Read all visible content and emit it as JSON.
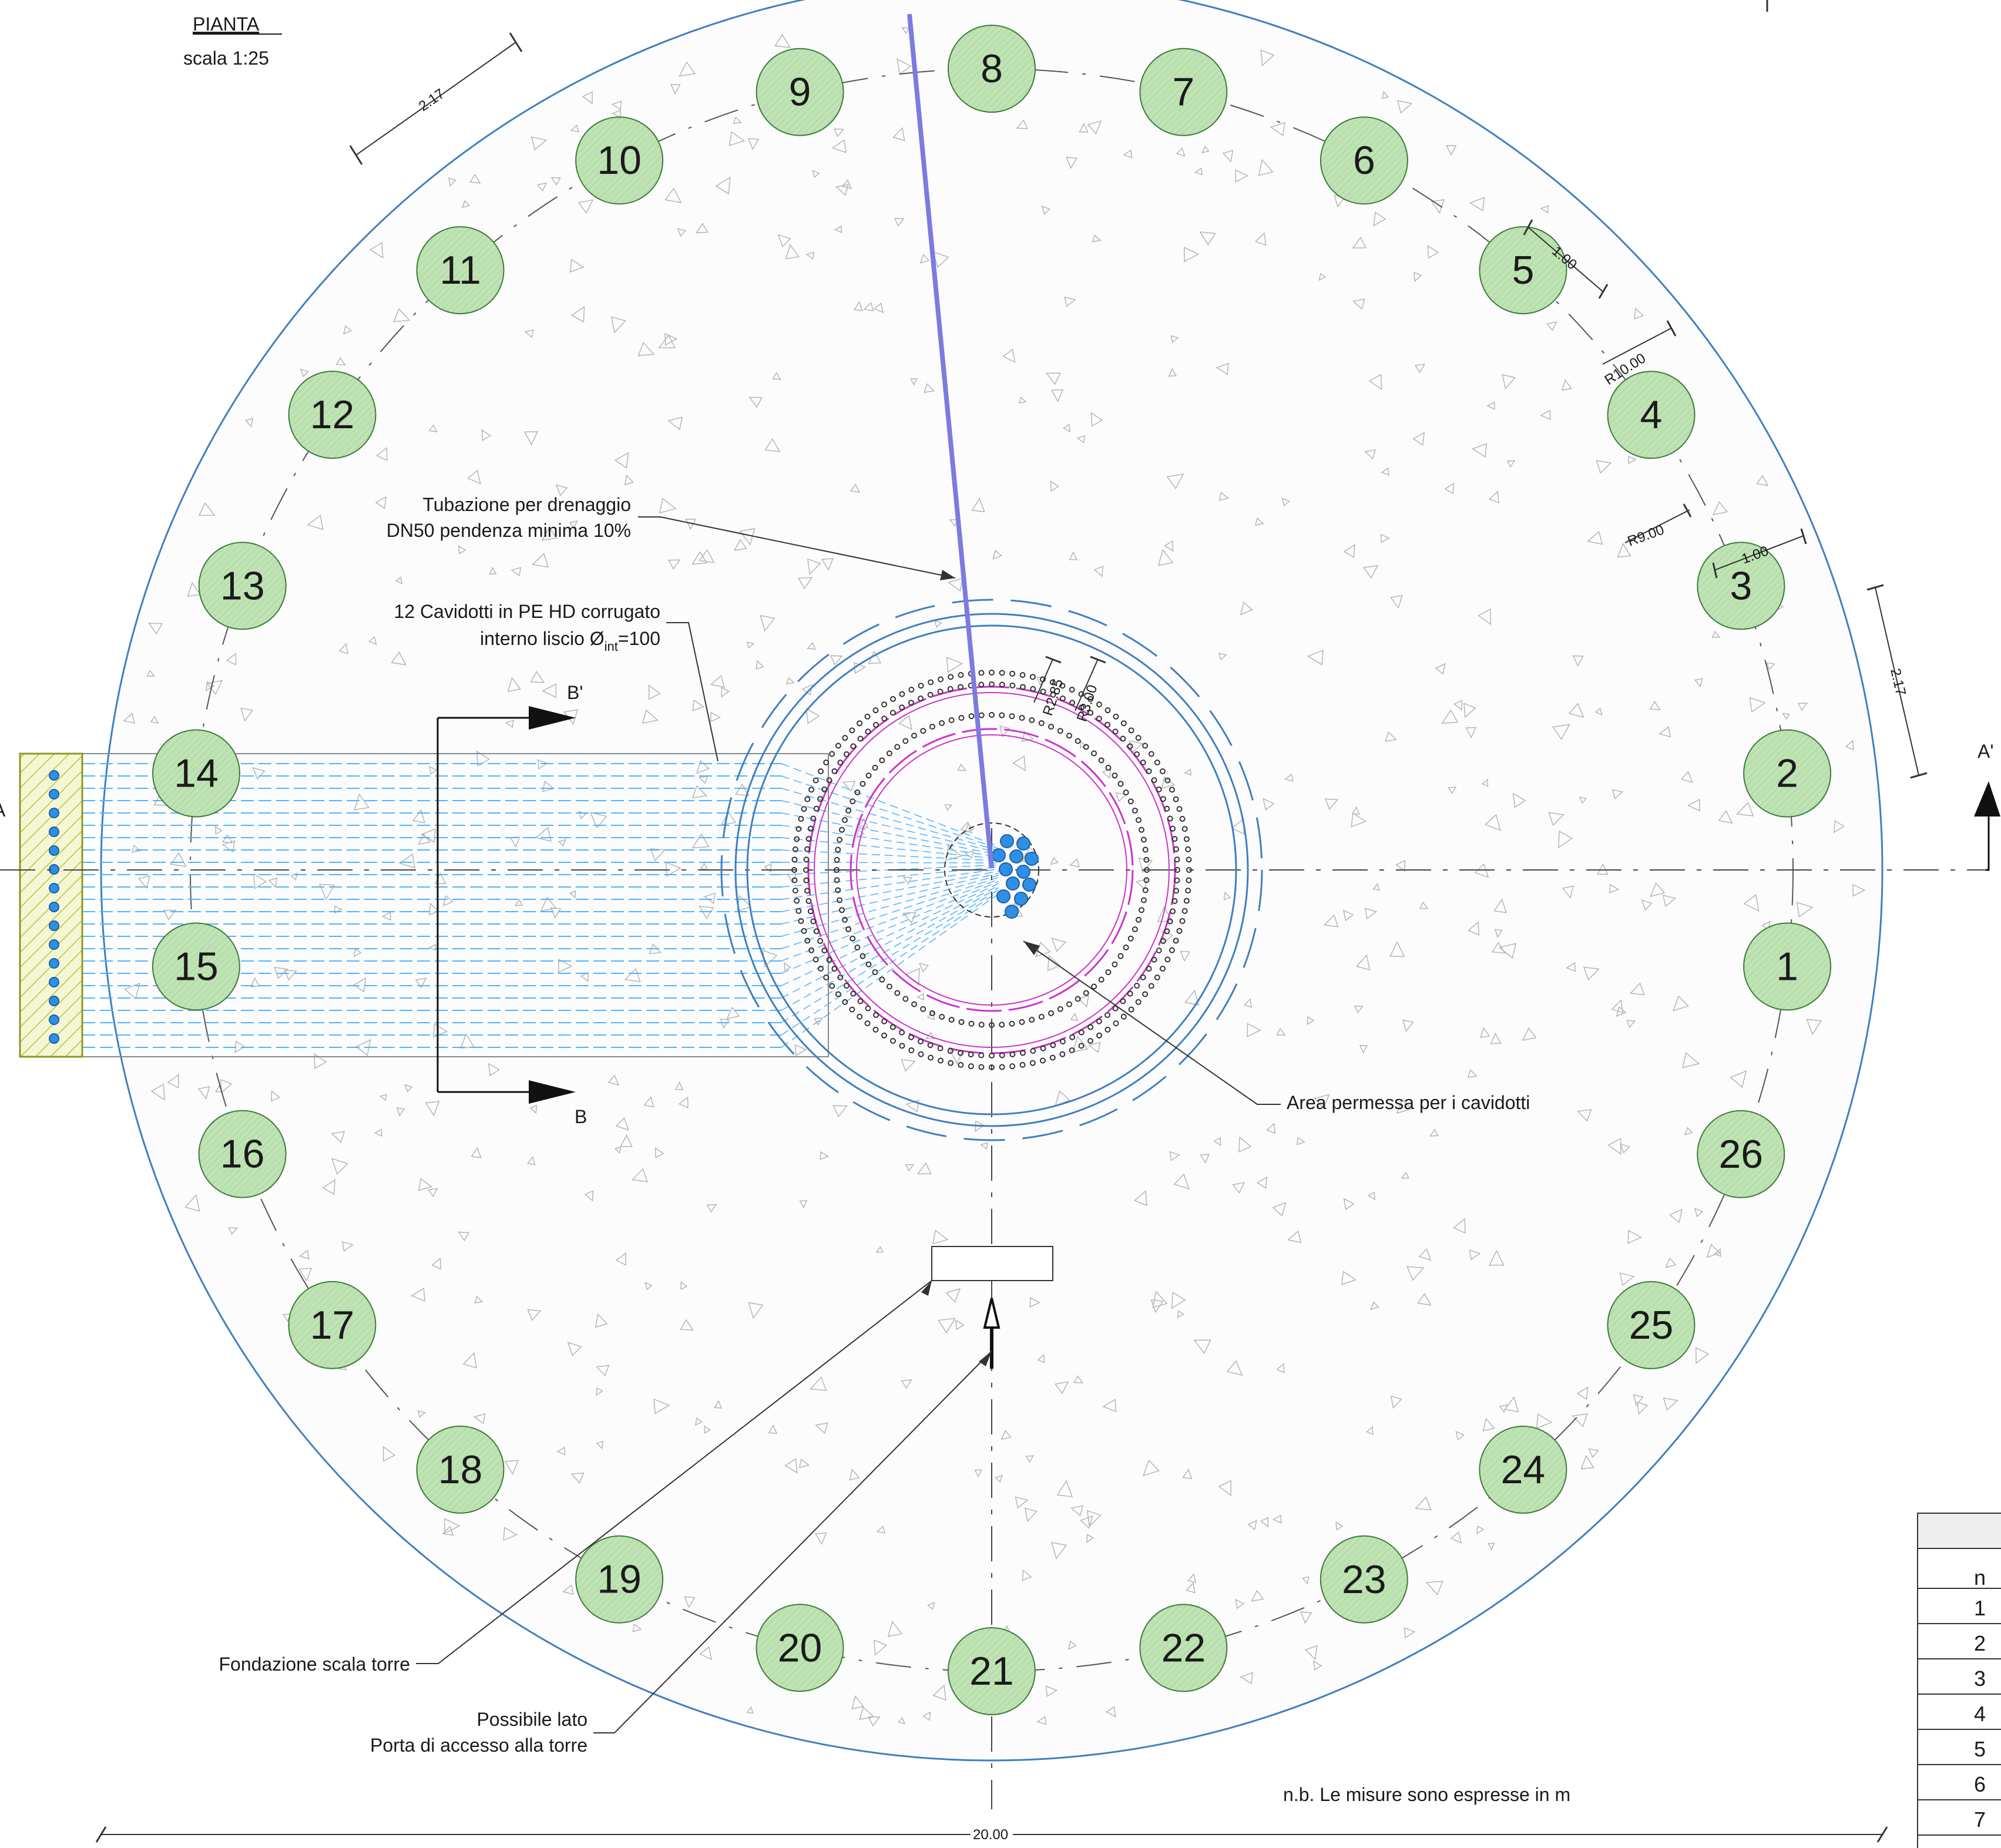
{
  "header": {
    "title": "PIANTA",
    "scale": "scala 1:25"
  },
  "piles": [
    "1",
    "2",
    "3",
    "4",
    "5",
    "6",
    "7",
    "8",
    "9",
    "10",
    "11",
    "12",
    "13",
    "14",
    "15",
    "16",
    "17",
    "18",
    "19",
    "20",
    "21",
    "22",
    "23",
    "24",
    "25",
    "26"
  ],
  "dimensions": {
    "d217_top": "2.17",
    "d217_right": "2.17",
    "d100_a": "1.00",
    "d100_b": "1.00",
    "r10": "R10.00",
    "r9": "R9.00",
    "r285": "R2.85",
    "r300": "R3.00",
    "d2000": "20.00"
  },
  "annotations": {
    "drain_line1": "Tubazione per drenaggio",
    "drain_line2": "DN50 pendenza minima 10%",
    "conduit_line1": "12 Cavidotti in PE HD corrugato",
    "conduit_line2_prefix": "interno liscio Ø",
    "conduit_line2_sub": "int",
    "conduit_line2_suffix": "=100",
    "area_cavidotti": "Area permessa per i cavidotti",
    "stair_foundation": "Fondazione scala torre",
    "door_line1": "Possibile lato",
    "door_line2": "Porta di accesso alla torre",
    "note": "n.b.   Le misure sono espresse in m"
  },
  "section_markers": {
    "a_left": "A",
    "a_right": "A'",
    "b_top": "B'",
    "b_bottom": "B"
  },
  "table": {
    "header": "n",
    "rows": [
      "1",
      "2",
      "3",
      "4",
      "5",
      "6",
      "7"
    ]
  },
  "colors": {
    "pile_fill": "#bfe3b4",
    "pile_stroke": "#3e7a3a",
    "outline_blue": "#3f7fc0",
    "conduit_blue": "#4fb3ff",
    "drain_purple": "#7b7be0",
    "magenta": "#cc33cc",
    "yellow_green": "#c8d83c"
  }
}
